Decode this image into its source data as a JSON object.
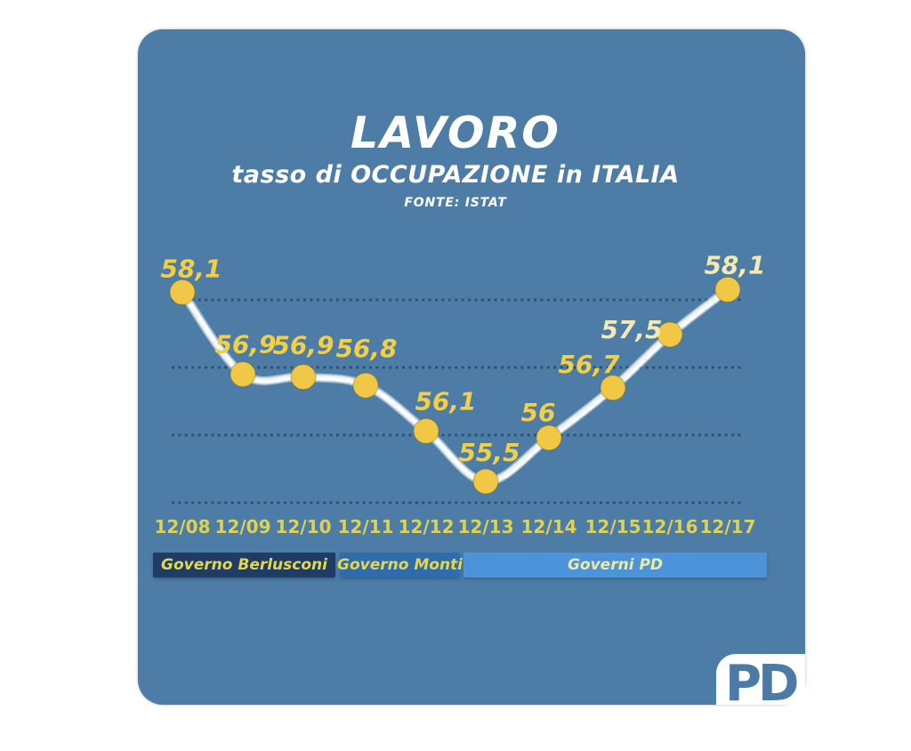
{
  "header": {
    "title": "LAVORO",
    "subtitle": "tasso di OCCUPAZIONE in ITALIA",
    "source": "FONTE: ISTAT"
  },
  "chart_data": {
    "type": "line",
    "x": [
      "12/08",
      "12/09",
      "12/10",
      "12/11",
      "12/12",
      "12/13",
      "12/14",
      "12/15",
      "12/16",
      "12/17"
    ],
    "values": [
      58.1,
      56.9,
      56.9,
      56.8,
      56.1,
      55.5,
      56,
      56.7,
      57.5,
      58.1
    ],
    "point_labels": [
      "58,1",
      "56,9",
      "56,9",
      "56,8",
      "56,1",
      "55,5",
      "56",
      "56,7",
      "57,5",
      "58,1"
    ],
    "point_label_colors": [
      "#f2cf43",
      "#f2cf43",
      "#f2cf43",
      "#f2cf43",
      "#f2cf43",
      "#f2cf43",
      "#f2cf43",
      "#f2cf43",
      "#f4e9b0",
      "#f4e9b0"
    ],
    "title": "LAVORO",
    "subtitle": "tasso di OCCUPAZIONE in ITALIA",
    "source": "FONTE: ISTAT",
    "ylim": [
      55,
      58.5
    ],
    "gridline_values": [
      58,
      57,
      56,
      55
    ],
    "grid_style": "dotted horizontal",
    "legend": "none",
    "line_color": "#ffffff",
    "point_color": "#f0c845",
    "x_label_color": "#dcd253",
    "grid_color": "#2a4a6a",
    "card_color": "#4d7ca7"
  },
  "bands": [
    {
      "label": "Governo Berlusconi",
      "color": "#1e3c64",
      "text_color": "#e6d64f",
      "from": "12/08",
      "to": "12/10"
    },
    {
      "label": "Governo Monti",
      "color": "#2f6cab",
      "text_color": "#e6d64f",
      "from": "12/11",
      "to": "12/12"
    },
    {
      "label": "Governi PD",
      "color": "#4c93d9",
      "text_color": "#f0e9a0",
      "from": "12/13",
      "to": "12/17"
    }
  ],
  "logo": {
    "text": "PD"
  }
}
